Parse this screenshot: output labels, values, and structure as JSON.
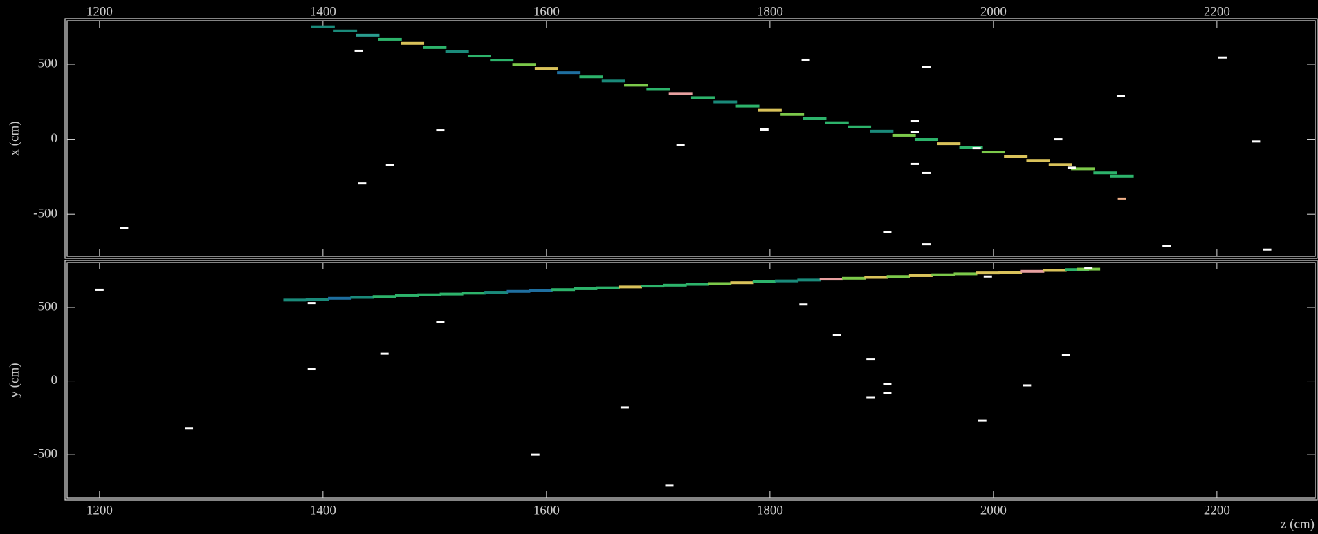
{
  "chart_data": [
    {
      "type": "scatter",
      "ylabel": "x (cm)",
      "xlim": [
        1171,
        2288
      ],
      "ylim": [
        -780,
        790
      ],
      "xticks": [
        1200,
        1400,
        1600,
        1800,
        2000,
        2200
      ],
      "yticks": [
        -500,
        0,
        500
      ],
      "grid": false,
      "series": [
        {
          "colors": [
            "#1a8a7a",
            "#1a8a7a",
            "#2a9d8f",
            "#2db36b",
            "#d9c25a",
            "#2db36b",
            "#1a8a7a",
            "#2db36b",
            "#2db36b",
            "#7cc94a",
            "#d9c25a",
            "#1f6fa0",
            "#2db36b",
            "#1a8a7a",
            "#7cc94a",
            "#2db36b",
            "#e8a0a0",
            "#2db36b",
            "#1a8a7a",
            "#2db36b",
            "#d9c25a",
            "#7cc94a",
            "#2db36b",
            "#2db36b",
            "#2db36b",
            "#1a8a7a",
            "#7cc94a",
            "#2db36b",
            "#d9c25a",
            "#2db36b",
            "#7cc94a",
            "#d9c25a",
            "#d9c25a",
            "#d9c25a",
            "#7cc94a",
            "#2db36b",
            "#2db36b"
          ],
          "x": [
            1400,
            1420,
            1440,
            1460,
            1480,
            1500,
            1520,
            1540,
            1560,
            1580,
            1600,
            1620,
            1640,
            1660,
            1680,
            1700,
            1720,
            1740,
            1760,
            1780,
            1800,
            1820,
            1840,
            1860,
            1880,
            1900,
            1920,
            1940,
            1960,
            1980,
            2000,
            2020,
            2040,
            2060,
            2080,
            2100,
            2115
          ],
          "values": [
            750,
            722,
            694,
            666,
            639,
            611,
            583,
            555,
            527,
            499,
            472,
            444,
            416,
            388,
            360,
            332,
            305,
            277,
            249,
            221,
            193,
            165,
            138,
            110,
            82,
            54,
            26,
            -2,
            -30,
            -57,
            -85,
            -113,
            -141,
            -169,
            -197,
            -224,
            -245
          ]
        },
        {
          "color": "#f2b28a",
          "x": [
            2115
          ],
          "values": [
            -395
          ]
        },
        {
          "color": "#ffffff",
          "x": [
            1432,
            1505,
            1720,
            1435,
            1460,
            1222,
            1832,
            1940,
            1795,
            1930,
            1930,
            1940,
            2058,
            2070,
            2114,
            2205,
            2235,
            1940,
            2155,
            2245,
            1905,
            1985,
            1930
          ],
          "values": [
            590,
            60,
            -40,
            -295,
            -170,
            -590,
            530,
            480,
            65,
            120,
            -165,
            -225,
            0,
            -190,
            290,
            545,
            -15,
            -700,
            -710,
            -735,
            -620,
            -60,
            50
          ]
        }
      ]
    },
    {
      "type": "scatter",
      "ylabel": "y (cm)",
      "xlabel": "z (cm)",
      "xlim": [
        1171,
        2288
      ],
      "ylim": [
        -795,
        805
      ],
      "xticks": [
        1200,
        1400,
        1600,
        1800,
        2000,
        2200
      ],
      "yticks": [
        -500,
        0,
        500
      ],
      "grid": false,
      "series": [
        {
          "colors": [
            "#1a8a7a",
            "#1a8a7a",
            "#1f6fa0",
            "#1a8a7a",
            "#2db36b",
            "#2db36b",
            "#2db36b",
            "#2db36b",
            "#2db36b",
            "#1a8a7a",
            "#1f6fa0",
            "#1f6fa0",
            "#2db36b",
            "#2db36b",
            "#2db36b",
            "#d9c25a",
            "#2db36b",
            "#2db36b",
            "#2db36b",
            "#7cc94a",
            "#d9c25a",
            "#2db36b",
            "#1a8a7a",
            "#1a8a7a",
            "#e8a0a0",
            "#7cc94a",
            "#d9c25a",
            "#7cc94a",
            "#d9c25a",
            "#7cc94a",
            "#7cc94a",
            "#d9c25a",
            "#d9c25a",
            "#e8a0a0",
            "#d9c25a",
            "#2db36b",
            "#7cc94a"
          ],
          "x": [
            1375,
            1395,
            1415,
            1435,
            1455,
            1475,
            1495,
            1515,
            1535,
            1555,
            1575,
            1595,
            1615,
            1635,
            1655,
            1675,
            1695,
            1715,
            1735,
            1755,
            1775,
            1795,
            1815,
            1835,
            1855,
            1875,
            1895,
            1915,
            1935,
            1955,
            1975,
            1995,
            2015,
            2035,
            2055,
            2075,
            2085
          ],
          "values": [
            550,
            556,
            562,
            568,
            574,
            580,
            586,
            591,
            597,
            603,
            609,
            615,
            621,
            627,
            633,
            639,
            645,
            651,
            657,
            662,
            668,
            674,
            680,
            686,
            692,
            698,
            704,
            710,
            716,
            722,
            728,
            734,
            739,
            745,
            751,
            757,
            760
          ]
        },
        {
          "color": "#ffffff",
          "x": [
            1390,
            1505,
            1455,
            1390,
            1280,
            1590,
            1670,
            1710,
            1830,
            1860,
            1890,
            1890,
            1905,
            1905,
            1990,
            2030,
            2065,
            1200,
            1995,
            2085
          ],
          "values": [
            530,
            400,
            185,
            80,
            -320,
            -500,
            -180,
            -710,
            520,
            310,
            150,
            -110,
            -20,
            -80,
            -270,
            -30,
            175,
            620,
            710,
            765
          ]
        }
      ]
    }
  ]
}
